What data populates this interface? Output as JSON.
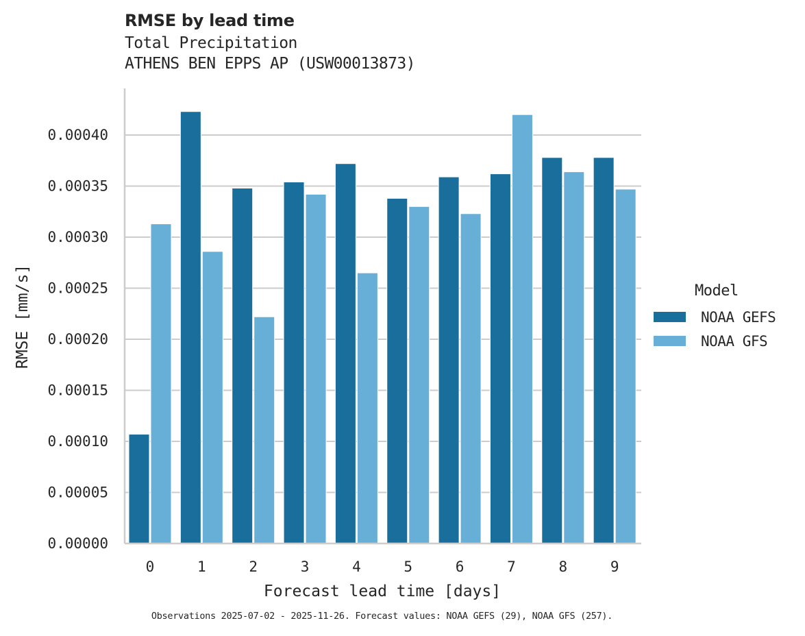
{
  "header": {
    "title": "RMSE by lead time",
    "subtitle_line1": "Total Precipitation",
    "subtitle_line2": "ATHENS BEN EPPS AP (USW00013873)"
  },
  "axes": {
    "xlabel": "Forecast lead time [days]",
    "ylabel": "RMSE [mm/s]",
    "yticks": [
      "0.00000",
      "0.00005",
      "0.00010",
      "0.00015",
      "0.00020",
      "0.00025",
      "0.00030",
      "0.00035",
      "0.00040"
    ],
    "xticks": [
      "0",
      "1",
      "2",
      "3",
      "4",
      "5",
      "6",
      "7",
      "8",
      "9"
    ]
  },
  "legend": {
    "title": "Model",
    "items": [
      {
        "label": "NOAA GEFS",
        "color": "#1a6e9c"
      },
      {
        "label": "NOAA GFS",
        "color": "#68afd7"
      }
    ]
  },
  "footer": {
    "note": "Observations 2025-07-02 - 2025-11-26. Forecast values: NOAA GEFS (29), NOAA GFS (257)."
  },
  "colors": {
    "gefs": "#1a6e9c",
    "gfs": "#68afd7",
    "grid": "#cccccc",
    "axis": "#cccccc",
    "text": "#262626"
  },
  "chart_data": {
    "type": "bar",
    "title": "RMSE by lead time",
    "subtitle": "Total Precipitation — ATHENS BEN EPPS AP (USW00013873)",
    "xlabel": "Forecast lead time [days]",
    "ylabel": "RMSE [mm/s]",
    "categories": [
      "0",
      "1",
      "2",
      "3",
      "4",
      "5",
      "6",
      "7",
      "8",
      "9"
    ],
    "series": [
      {
        "name": "NOAA GEFS",
        "color": "#1a6e9c",
        "values": [
          0.000107,
          0.000423,
          0.000348,
          0.000354,
          0.000372,
          0.000338,
          0.000359,
          0.000362,
          0.000378,
          0.000378
        ]
      },
      {
        "name": "NOAA GFS",
        "color": "#68afd7",
        "values": [
          0.000313,
          0.000286,
          0.000222,
          0.000342,
          0.000265,
          0.00033,
          0.000323,
          0.00042,
          0.000364,
          0.000347
        ]
      }
    ],
    "ylim": [
      0,
      0.000445
    ],
    "yticks": [
      0,
      5e-05,
      0.0001,
      0.00015,
      0.0002,
      0.00025,
      0.0003,
      0.00035,
      0.0004
    ],
    "grid": "horizontal",
    "legend_position": "right",
    "legend_title": "Model",
    "footnote": "Observations 2025-07-02 - 2025-11-26. Forecast values: NOAA GEFS (29), NOAA GFS (257)."
  }
}
